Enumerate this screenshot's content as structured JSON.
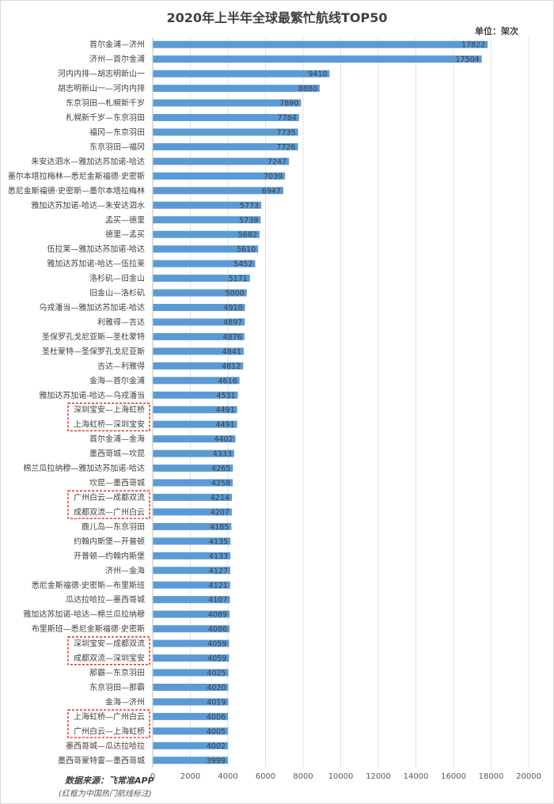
{
  "chart_data": {
    "type": "bar",
    "orientation": "horizontal",
    "title": "2020年上半年全球最繁忙航线TOP50",
    "unit": "单位：架次",
    "source": "数据来源：飞常准APP",
    "note": "(红框为中国热门航线标注)",
    "bar_color": "#5b9bd5",
    "highlight_color": "#e00000",
    "xlim": [
      0,
      20000
    ],
    "xticks": [
      0,
      2000,
      4000,
      6000,
      8000,
      10000,
      12000,
      14000,
      16000,
      18000,
      20000
    ],
    "grid": true,
    "categories": [
      "首尔金浦—济州",
      "济州—首尔金浦",
      "河内内排—胡志明新山一",
      "胡志明新山一—河内内排",
      "东京羽田—札幌新千岁",
      "札幌新千岁—东京羽田",
      "福冈—东京羽田",
      "东京羽田—福冈",
      "朱安达泗水—雅加达苏加诺-哈达",
      "墨尔本塔拉梅林—悉尼金斯福德·史密斯",
      "悉尼金斯福德·史密斯—墨尔本塔拉梅林",
      "雅加达苏加诺-哈达—朱安达泗水",
      "孟买—德里",
      "德里—孟买",
      "伍拉莱—雅加达苏加诺-哈达",
      "雅加达苏加诺-哈达—伍拉莱",
      "洛杉矶—旧金山",
      "旧金山—洛杉矶",
      "乌戎潘当—雅加达苏加诺-哈达",
      "利雅得—吉达",
      "圣保罗孔戈尼亚斯—圣杜蒙特",
      "圣杜蒙特—圣保罗孔戈尼亚斯",
      "吉达—利雅得",
      "金海—首尔金浦",
      "雅加达苏加诺-哈达—乌戎潘当",
      "深圳宝安—上海虹桥",
      "上海虹桥—深圳宝安",
      "首尔金浦—金海",
      "墨西哥城—坎昆",
      "棉兰瓜拉纳穆—雅加达苏加诺-哈达",
      "坎昆—墨西哥城",
      "广州白云—成都双流",
      "成都双流—广州白云",
      "鹿儿岛—东京羽田",
      "约翰内斯堡—开普顿",
      "开普顿—约翰内斯堡",
      "济州—金海",
      "悉尼金斯福德·史密斯—布里斯班",
      "瓜达拉哈拉—墨西哥城",
      "雅加达苏加诺-哈达—棉兰瓜拉纳穆",
      "布里斯班—悉尼金斯福德·史密斯",
      "深圳宝安—成都双流",
      "成都双流—深圳宝安",
      "那霸—东京羽田",
      "东京羽田—那霸",
      "金海—济州",
      "上海虹桥—广州白云",
      "广州白云—上海虹桥",
      "墨西哥城—瓜达拉哈拉",
      "墨西哥蒙特雷—墨西哥城"
    ],
    "values": [
      17822,
      17504,
      9410,
      8880,
      7890,
      7784,
      7735,
      7726,
      7247,
      7039,
      6947,
      5773,
      5739,
      5682,
      5610,
      5452,
      5171,
      5000,
      4910,
      4897,
      4876,
      4841,
      4812,
      4616,
      4531,
      4491,
      4491,
      4402,
      4333,
      4265,
      4258,
      4214,
      4207,
      4185,
      4135,
      4133,
      4127,
      4121,
      4107,
      4089,
      4086,
      4059,
      4059,
      4025,
      4020,
      4019,
      4006,
      4005,
      4002,
      3999
    ],
    "highlight_groups": [
      [
        25,
        26
      ],
      [
        31,
        32
      ],
      [
        41,
        42
      ],
      [
        46,
        47
      ]
    ]
  }
}
